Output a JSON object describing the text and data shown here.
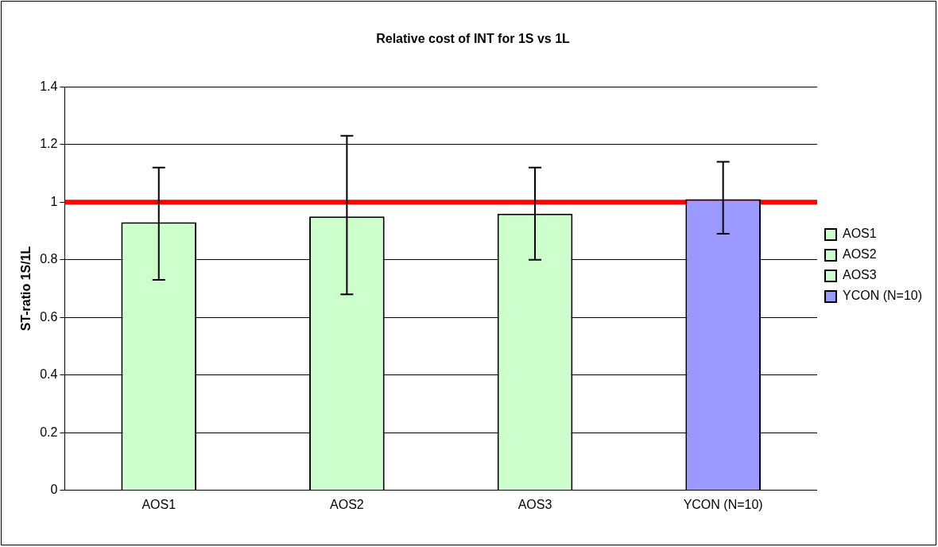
{
  "chart_data": {
    "type": "bar",
    "title": "Relative cost of INT for 1S vs 1L",
    "ylabel": "ST-ratio 1S/1L",
    "categories": [
      "AOS1",
      "AOS2",
      "AOS3",
      "YCON (N=10)"
    ],
    "series": [
      {
        "name": "AOS1",
        "color": "#ccffcc",
        "values": [
          0.93,
          null,
          null,
          null
        ],
        "errors": [
          [
            0.73,
            1.12
          ],
          null,
          null,
          null
        ]
      },
      {
        "name": "AOS2",
        "color": "#ccffcc",
        "values": [
          null,
          0.95,
          null,
          null
        ],
        "errors": [
          null,
          [
            0.68,
            1.23
          ],
          null,
          null
        ]
      },
      {
        "name": "AOS3",
        "color": "#ccffcc",
        "values": [
          null,
          null,
          0.96,
          null
        ],
        "errors": [
          null,
          null,
          [
            0.8,
            1.12
          ],
          null
        ]
      },
      {
        "name": "YCON (N=10)",
        "color": "#9999ff",
        "values": [
          null,
          null,
          null,
          1.01
        ],
        "errors": [
          null,
          null,
          null,
          [
            0.89,
            1.14
          ]
        ]
      }
    ],
    "ylim": [
      0,
      1.4
    ],
    "yticks": [
      0,
      0.2,
      0.4,
      0.6,
      0.8,
      1,
      1.2,
      1.4
    ],
    "ref_lines": [
      {
        "axis": "y",
        "value": 1,
        "color": "#ff0000"
      }
    ],
    "grid": "y",
    "legend": "right"
  }
}
